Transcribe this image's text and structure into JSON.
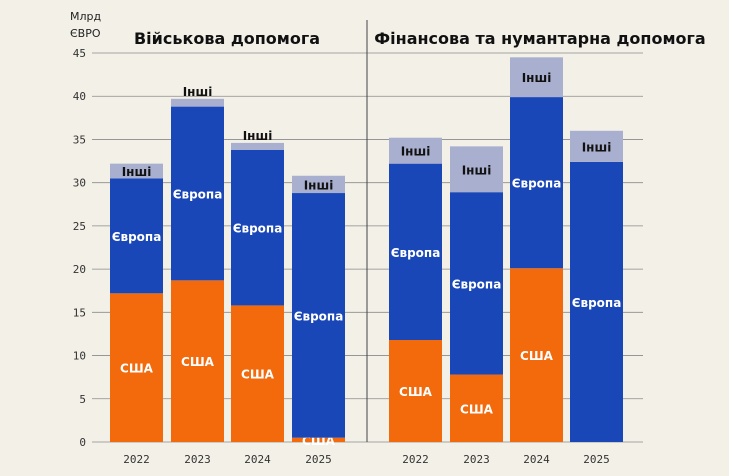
{
  "chart_data": [
    {
      "type": "bar",
      "stacked": true,
      "title": "Військова допомога",
      "ylabel": "Млрд ЄВРО",
      "ylim": [
        0,
        45
      ],
      "yticks": [
        0,
        5,
        10,
        15,
        20,
        25,
        30,
        35,
        40,
        45
      ],
      "grid": true,
      "categories": [
        "2022",
        "2023",
        "2024",
        "2025"
      ],
      "series": [
        {
          "name": "США",
          "color": "#f26a0c",
          "values": [
            17.2,
            18.7,
            15.8,
            0.5
          ]
        },
        {
          "name": "Європа",
          "color": "#1a47b8",
          "values": [
            13.3,
            20.1,
            18.0,
            28.3
          ]
        },
        {
          "name": "Інші",
          "color": "#a9b0cf",
          "values": [
            1.7,
            0.9,
            0.8,
            2.0
          ]
        }
      ]
    },
    {
      "type": "bar",
      "stacked": true,
      "title": "Фінансова та нумантарна допомога",
      "ylim": [
        0,
        45
      ],
      "grid": true,
      "categories": [
        "2022",
        "2023",
        "2024",
        "2025"
      ],
      "series": [
        {
          "name": "США",
          "color": "#f26a0c",
          "values": [
            11.8,
            7.8,
            20.1,
            0
          ]
        },
        {
          "name": "Європа",
          "color": "#1a47b8",
          "values": [
            20.4,
            21.1,
            19.8,
            32.4
          ]
        },
        {
          "name": "Інші",
          "color": "#a9b0cf",
          "values": [
            3.0,
            5.3,
            4.6,
            3.6
          ]
        }
      ]
    }
  ]
}
